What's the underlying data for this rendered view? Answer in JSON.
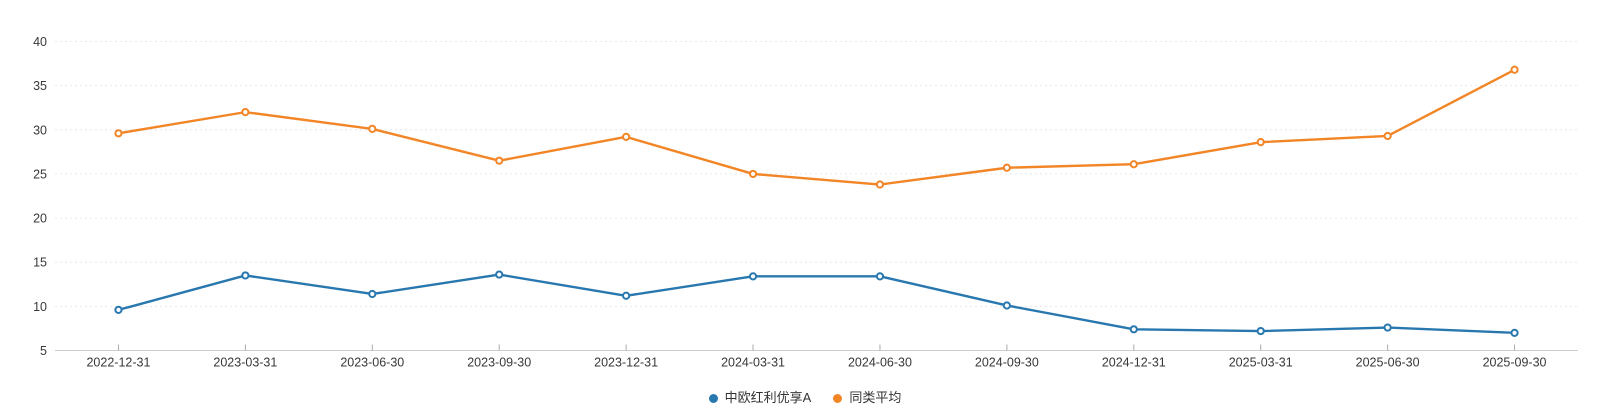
{
  "chart_data": {
    "type": "line",
    "x": [
      "2022-12-31",
      "2023-03-31",
      "2023-06-30",
      "2023-09-30",
      "2023-12-31",
      "2024-03-31",
      "2024-06-30",
      "2024-09-30",
      "2024-12-31",
      "2025-03-31",
      "2025-06-30",
      "2025-09-30"
    ],
    "series": [
      {
        "name": "中欧红利优享A",
        "color": "#2878af",
        "values": [
          9.6,
          13.5,
          11.4,
          13.6,
          11.2,
          13.4,
          13.4,
          10.1,
          7.4,
          7.2,
          7.6,
          7.0
        ]
      },
      {
        "name": "同类平均",
        "color": "#f28526",
        "values": [
          29.6,
          32.0,
          30.1,
          26.5,
          29.2,
          25.0,
          23.8,
          25.7,
          26.1,
          28.6,
          29.3,
          36.8
        ]
      }
    ],
    "title": "",
    "xlabel": "",
    "ylabel": "",
    "ylim": [
      5,
      40
    ],
    "y_ticks": [
      5,
      10,
      15,
      20,
      25,
      30,
      35,
      40
    ],
    "grid": "horizontal-dotted",
    "legend_position": "bottom-center",
    "marker": "hollow-circle"
  },
  "styles": {
    "background": "#ffffff",
    "grid_color": "#e6e6ec",
    "axis_color": "#cccccc",
    "tick_color": "#aaaaaa",
    "label_color": "#383838",
    "marker_fill": "#ffffff"
  }
}
